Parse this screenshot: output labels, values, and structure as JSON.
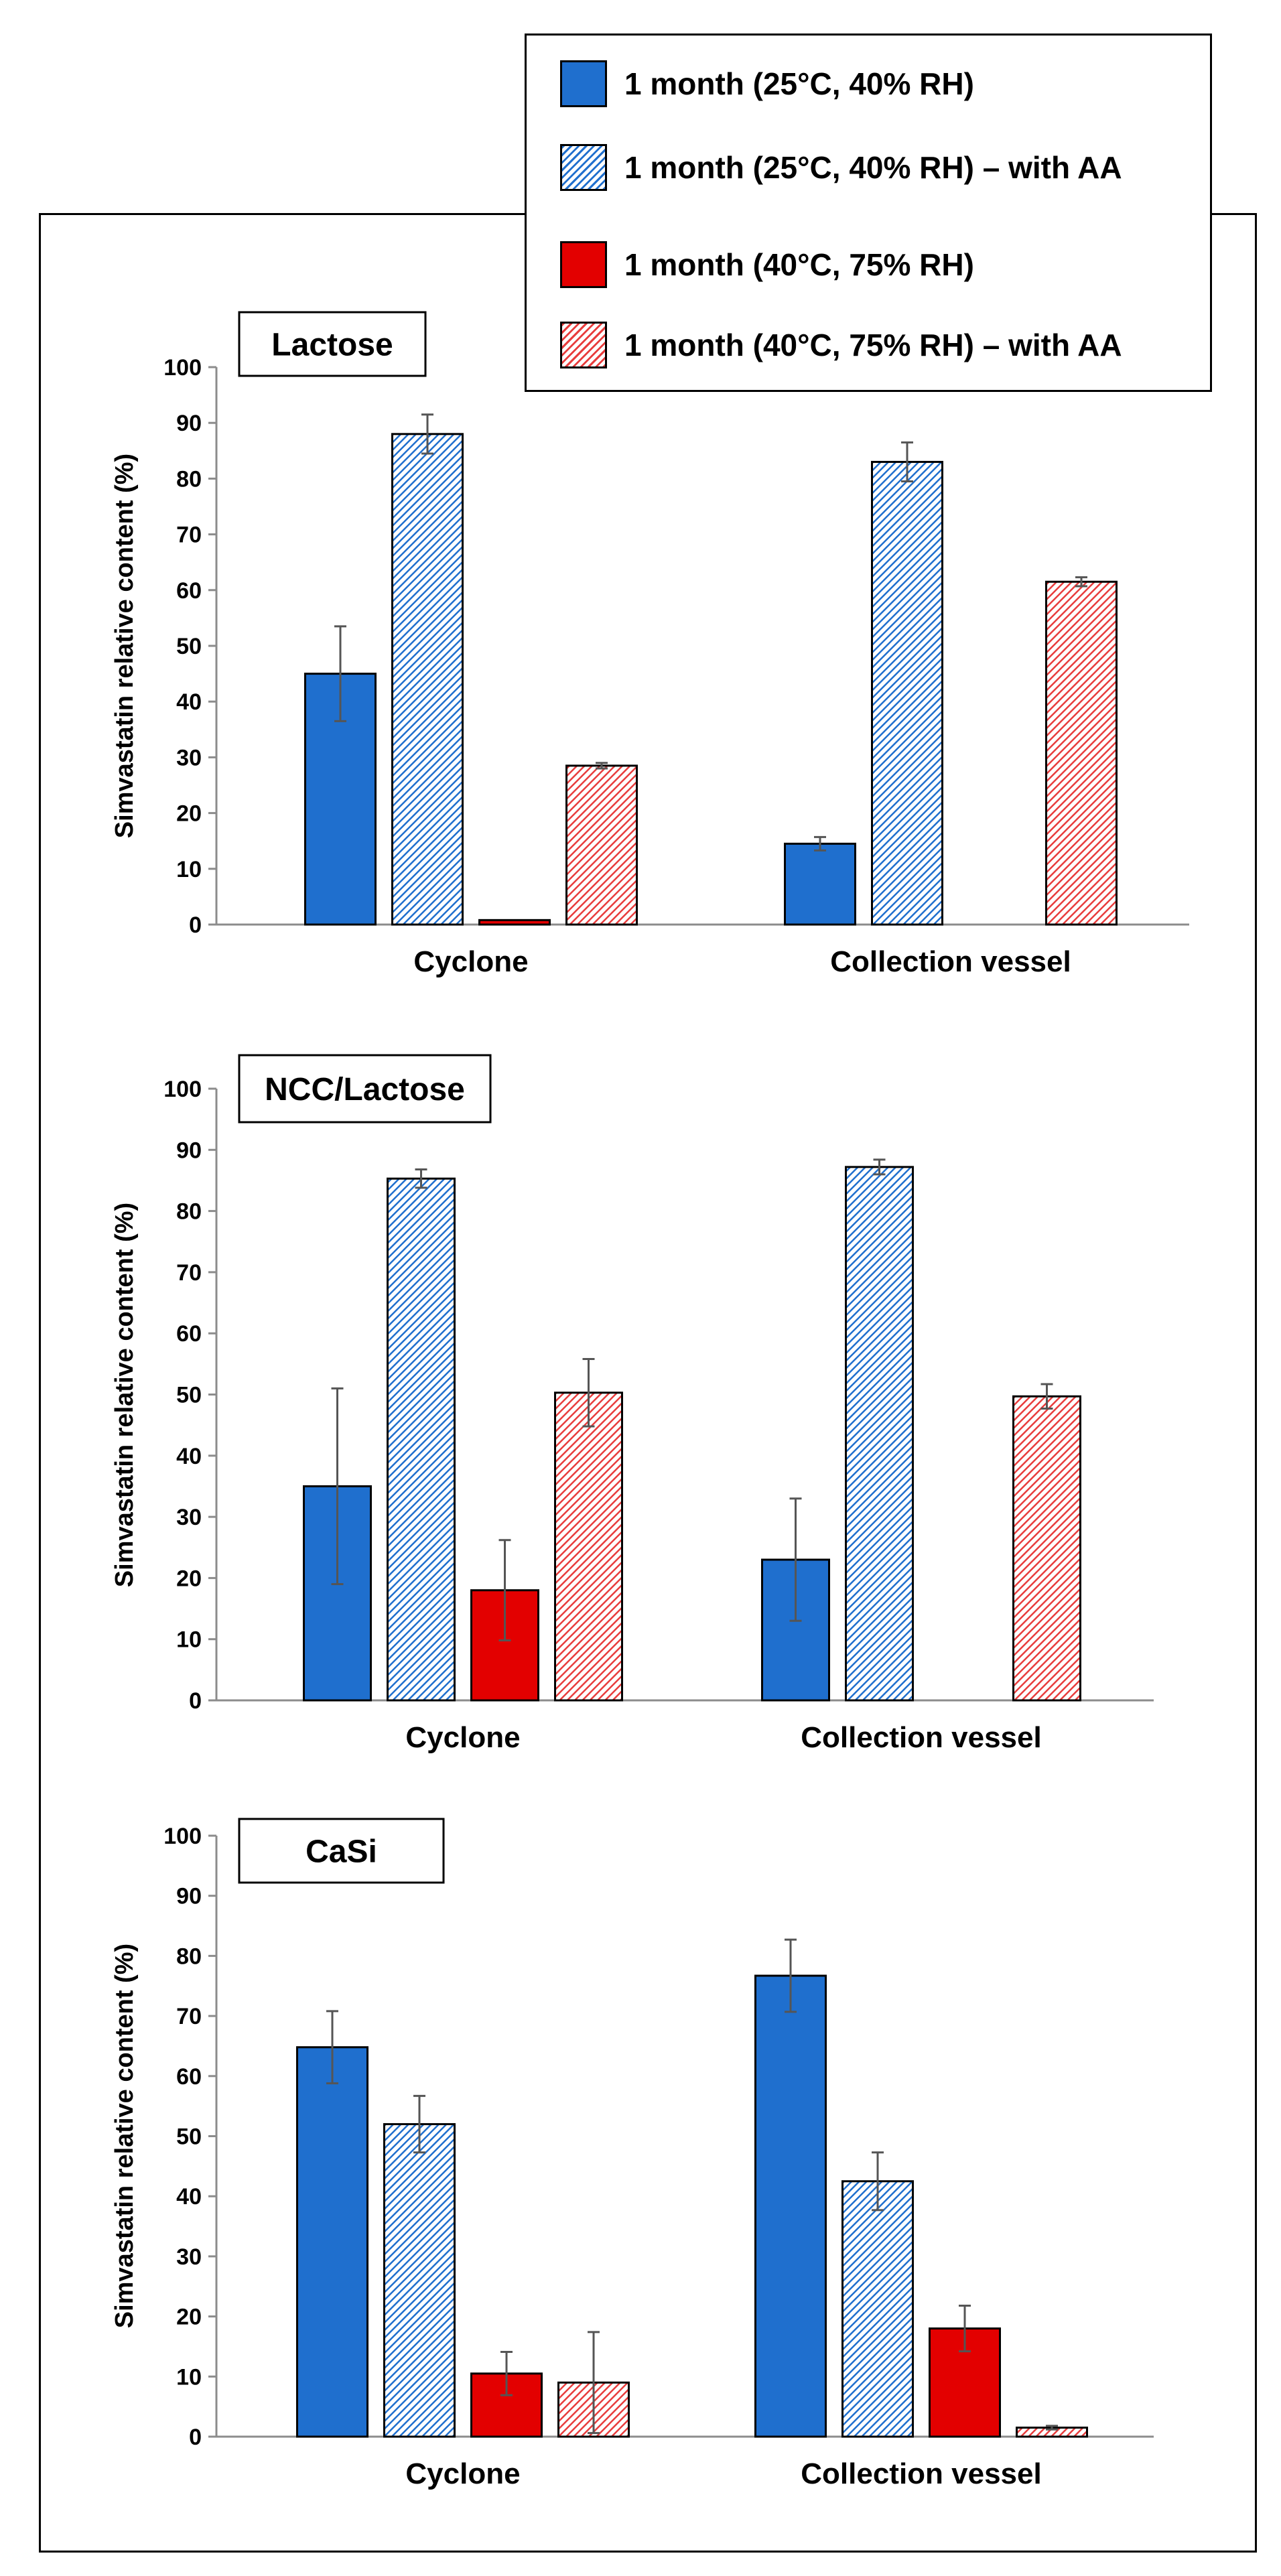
{
  "legend": {
    "items": [
      {
        "label": "1 month (25°C, 40% RH)",
        "color": "#1f6fce",
        "pattern": "solid"
      },
      {
        "label": "1 month (25°C, 40% RH) – with AA",
        "color": "#1f6fce",
        "pattern": "hatch"
      },
      {
        "label": "1 month (40°C, 75% RH)",
        "color": "#e30000",
        "pattern": "solid"
      },
      {
        "label": "1 month (40°C, 75% RH) – with AA",
        "color": "#e83c3c",
        "pattern": "hatch"
      }
    ]
  },
  "chart_data": [
    {
      "type": "bar",
      "title": "Lactose",
      "ylabel": "Simvastatin relative content (%)",
      "xlabel": "",
      "ylim": [
        0,
        100
      ],
      "yticks": [
        0,
        10,
        20,
        30,
        40,
        50,
        60,
        70,
        80,
        90,
        100
      ],
      "categories": [
        "Cyclone",
        "Collection vessel"
      ],
      "series": [
        {
          "name": "1 month (25°C, 40% RH)",
          "values": [
            45,
            14.5
          ],
          "errors": [
            8.5,
            1.2
          ]
        },
        {
          "name": "1 month (25°C, 40% RH) – with AA",
          "values": [
            88,
            83
          ],
          "errors": [
            3.5,
            3.5
          ]
        },
        {
          "name": "1 month (40°C, 75% RH)",
          "values": [
            0.8,
            0
          ],
          "errors": [
            0,
            0
          ]
        },
        {
          "name": "1 month (40°C, 75% RH) – with AA",
          "values": [
            28.5,
            61.5
          ],
          "errors": [
            0.5,
            0.8
          ]
        }
      ]
    },
    {
      "type": "bar",
      "title": "NCC/Lactose",
      "ylabel": "Simvastatin relative content (%)",
      "xlabel": "",
      "ylim": [
        0,
        100
      ],
      "yticks": [
        0,
        10,
        20,
        30,
        40,
        50,
        60,
        70,
        80,
        90,
        100
      ],
      "categories": [
        "Cyclone",
        "Collection vessel"
      ],
      "series": [
        {
          "name": "1 month (25°C, 40% RH)",
          "values": [
            35,
            23
          ],
          "errors": [
            16,
            10
          ]
        },
        {
          "name": "1 month (25°C, 40% RH) – with AA",
          "values": [
            85.3,
            87.2
          ],
          "errors": [
            1.5,
            1.2
          ]
        },
        {
          "name": "1 month (40°C, 75% RH)",
          "values": [
            18,
            0
          ],
          "errors": [
            8.2,
            0
          ]
        },
        {
          "name": "1 month (40°C, 75% RH) – with AA",
          "values": [
            50.3,
            49.7
          ],
          "errors": [
            5.5,
            2
          ]
        }
      ]
    },
    {
      "type": "bar",
      "title": "CaSi",
      "ylabel": "Simvastatin relative content (%)",
      "xlabel": "",
      "ylim": [
        0,
        100
      ],
      "yticks": [
        0,
        10,
        20,
        30,
        40,
        50,
        60,
        70,
        80,
        90,
        100
      ],
      "categories": [
        "Cyclone",
        "Collection vessel"
      ],
      "series": [
        {
          "name": "1 month (25°C, 40% RH)",
          "values": [
            64.8,
            76.7
          ],
          "errors": [
            6,
            6
          ]
        },
        {
          "name": "1 month (25°C, 40% RH) – with AA",
          "values": [
            52,
            42.5
          ],
          "errors": [
            4.7,
            4.8
          ]
        },
        {
          "name": "1 month (40°C, 75% RH)",
          "values": [
            10.5,
            18
          ],
          "errors": [
            3.6,
            3.8
          ]
        },
        {
          "name": "1 month (40°C, 75% RH) – with AA",
          "values": [
            9,
            1.5
          ],
          "errors": [
            8.4,
            0.3
          ]
        }
      ]
    }
  ]
}
